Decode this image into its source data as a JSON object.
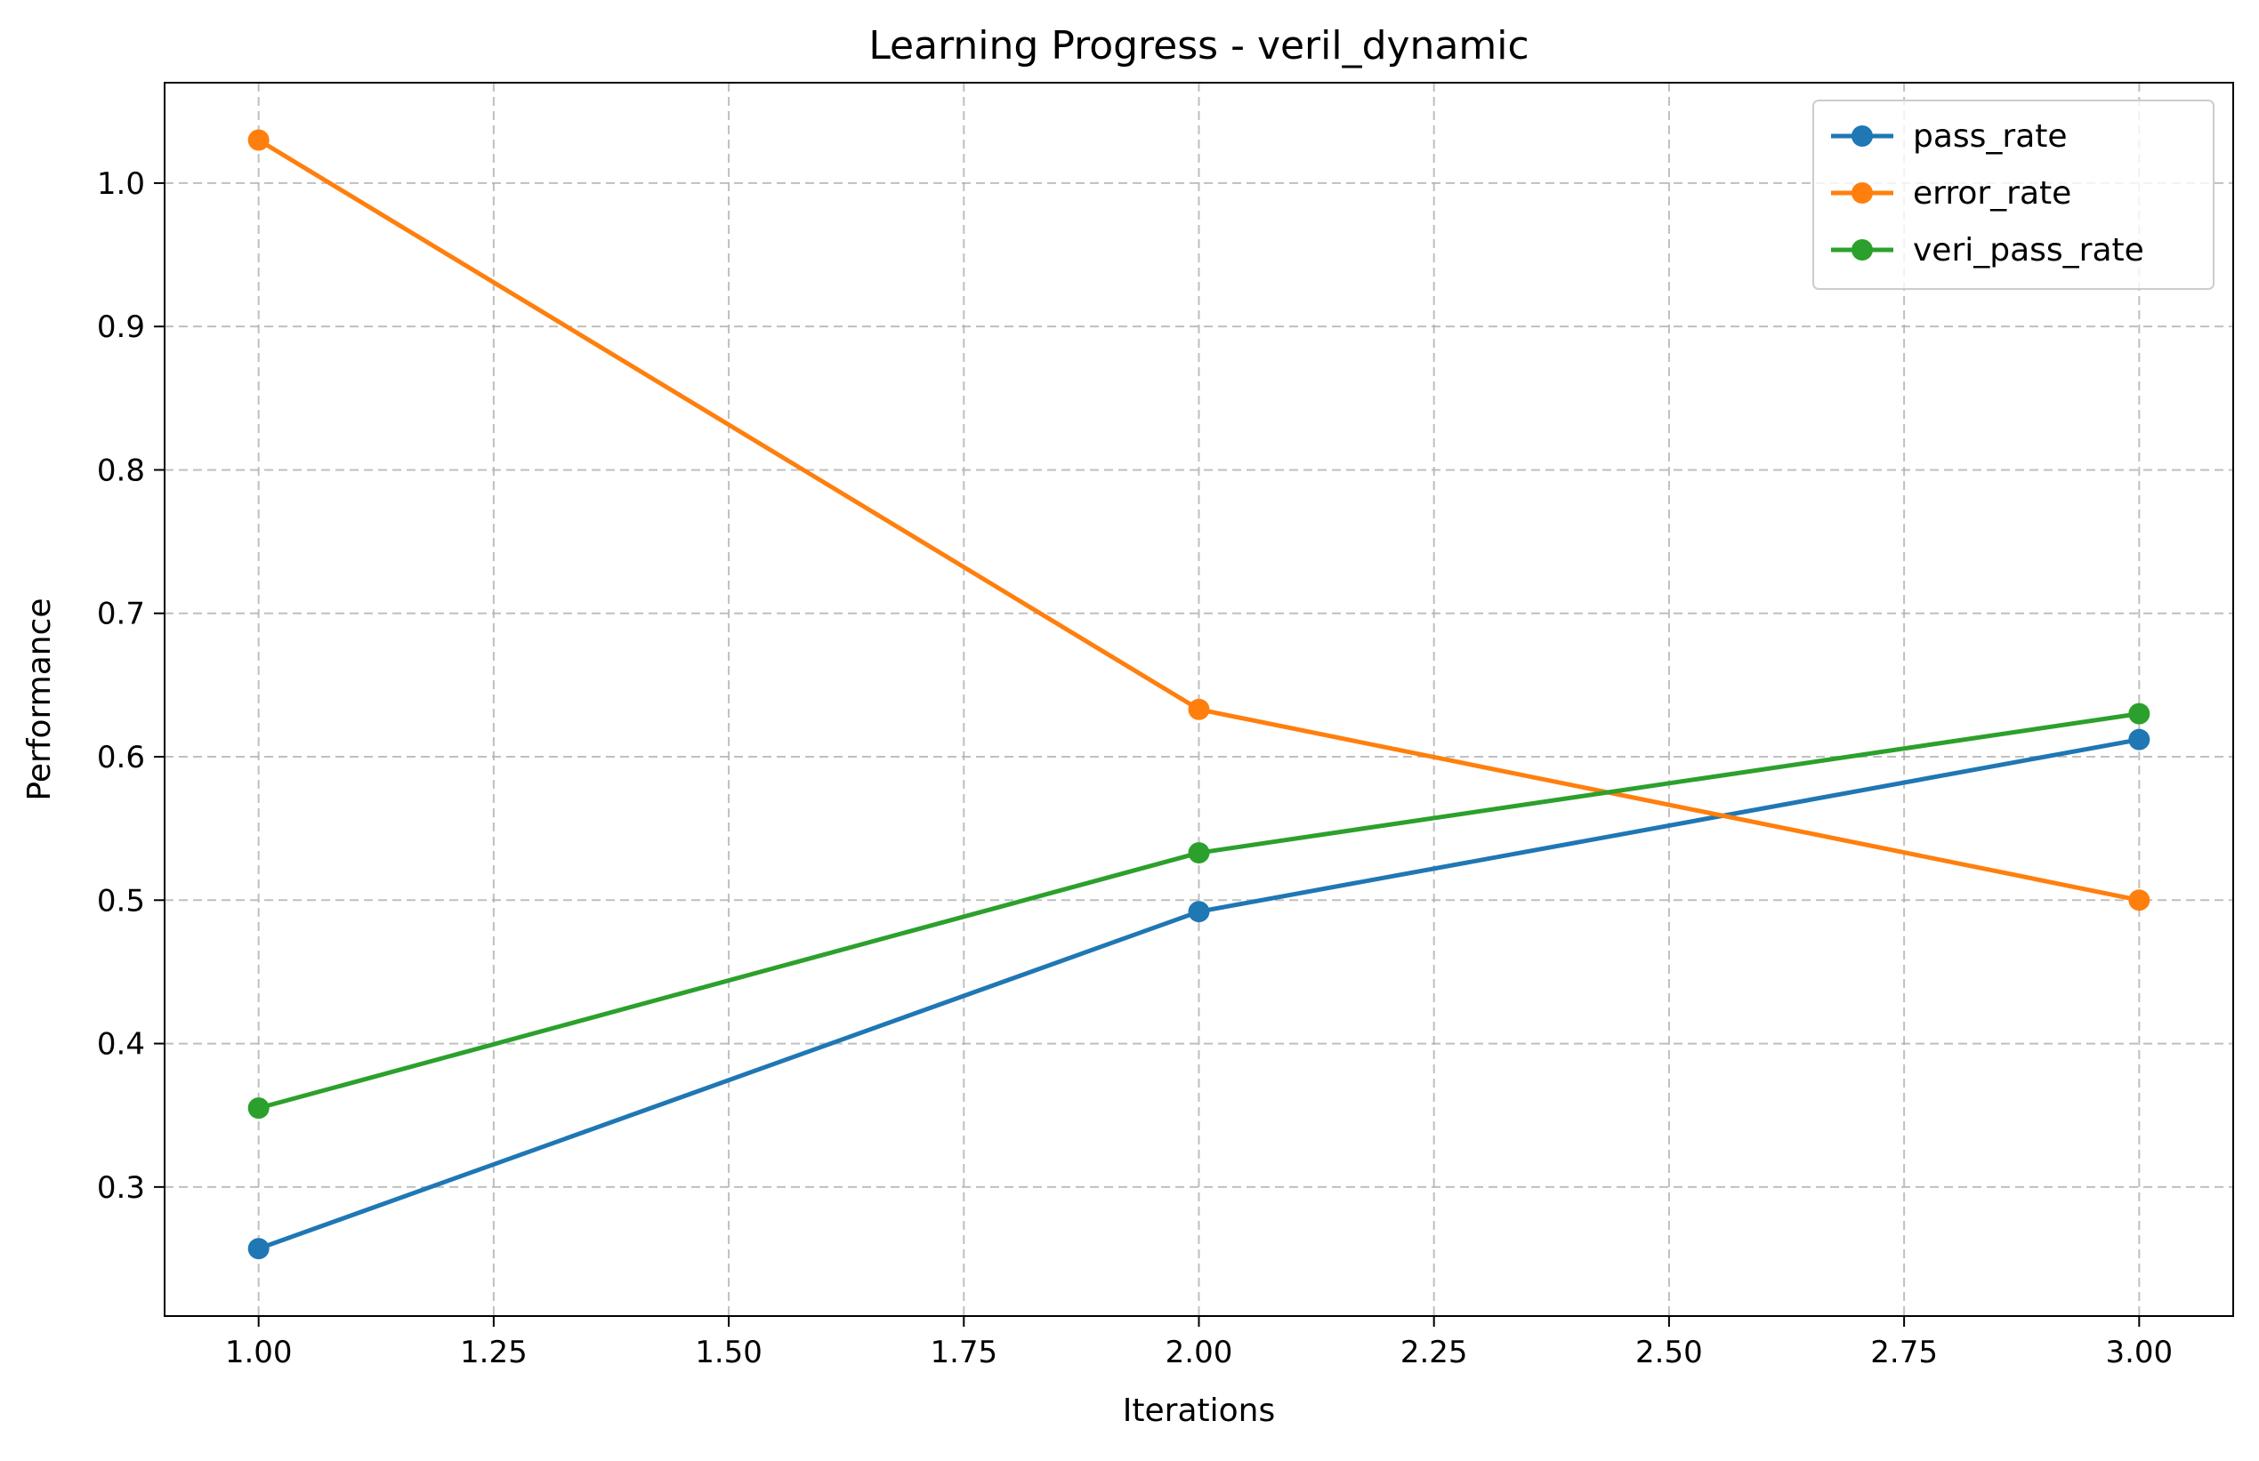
{
  "chart_data": {
    "type": "line",
    "title": "Learning Progress - veril_dynamic",
    "xlabel": "Iterations",
    "ylabel": "Performance",
    "x": [
      1,
      2,
      3
    ],
    "xlim": [
      0.9,
      3.1
    ],
    "ylim": [
      0.21,
      1.07
    ],
    "xticks": [
      1.0,
      1.25,
      1.5,
      1.75,
      2.0,
      2.25,
      2.5,
      2.75,
      3.0
    ],
    "xtick_labels": [
      "1.00",
      "1.25",
      "1.50",
      "1.75",
      "2.00",
      "2.25",
      "2.50",
      "2.75",
      "3.00"
    ],
    "yticks": [
      0.3,
      0.4,
      0.5,
      0.6,
      0.7,
      0.8,
      0.9,
      1.0
    ],
    "ytick_labels": [
      "0.3",
      "0.4",
      "0.5",
      "0.6",
      "0.7",
      "0.8",
      "0.9",
      "1.0"
    ],
    "grid": true,
    "legend_position": "top-right",
    "series": [
      {
        "name": "pass_rate",
        "values": [
          0.257,
          0.492,
          0.612
        ],
        "color": "#1f77b4"
      },
      {
        "name": "error_rate",
        "values": [
          1.03,
          0.633,
          0.5
        ],
        "color": "#ff7f0e"
      },
      {
        "name": "veri_pass_rate",
        "values": [
          0.355,
          0.533,
          0.63
        ],
        "color": "#2ca02c"
      }
    ]
  }
}
